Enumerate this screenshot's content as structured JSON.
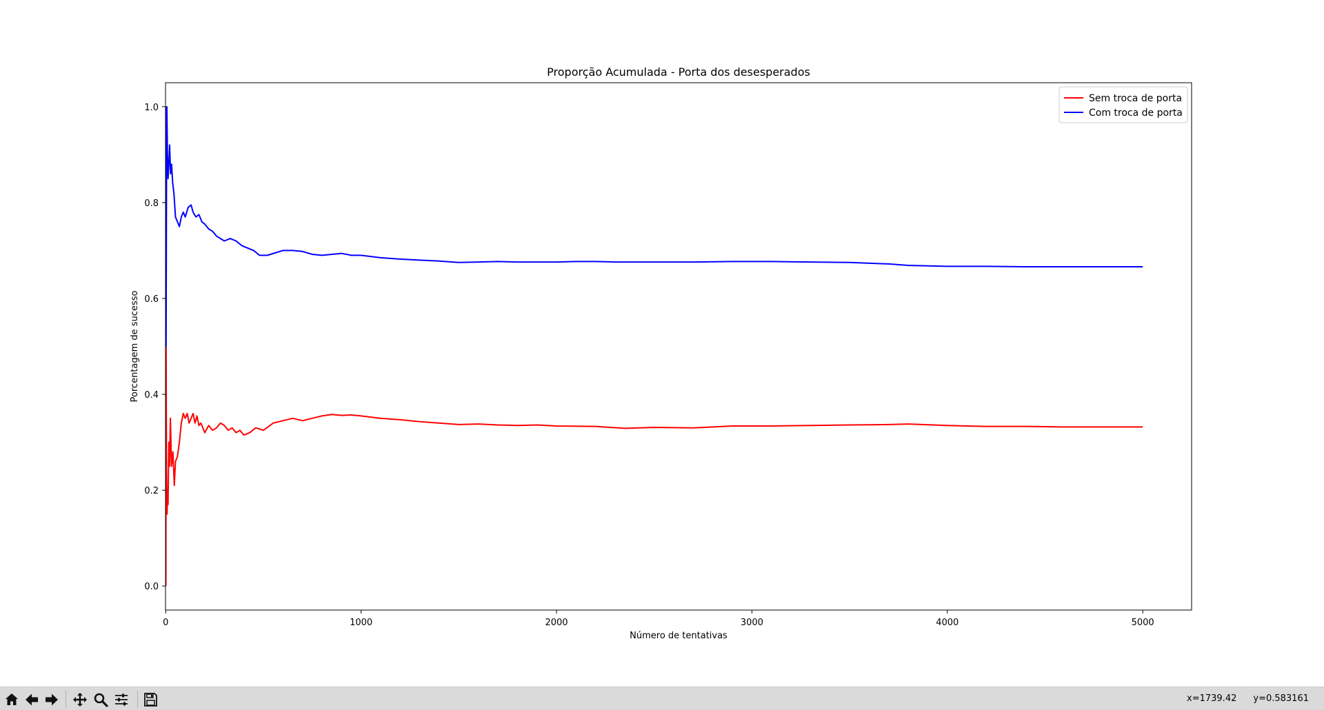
{
  "chart_data": {
    "type": "line",
    "title": "Proporção Acumulada - Porta dos desesperados",
    "xlabel": "Número de tentativas",
    "ylabel": "Porcentagem de sucesso",
    "xlim": [
      -1,
      5250
    ],
    "ylim": [
      -0.05,
      1.05
    ],
    "xticks": [
      0,
      1000,
      2000,
      3000,
      4000,
      5000
    ],
    "yticks": [
      0.0,
      0.2,
      0.4,
      0.6,
      0.8,
      1.0
    ],
    "xtick_labels": [
      "0",
      "1000",
      "2000",
      "3000",
      "4000",
      "5000"
    ],
    "ytick_labels": [
      "0.0",
      "0.2",
      "0.4",
      "0.6",
      "0.8",
      "1.0"
    ],
    "legend_position": "top-right",
    "grid": false,
    "series": [
      {
        "name": "Sem troca de porta",
        "color": "#ff0000",
        "points": [
          [
            1,
            0.0
          ],
          [
            2,
            0.5
          ],
          [
            4,
            0.25
          ],
          [
            7,
            0.15
          ],
          [
            10,
            0.2
          ],
          [
            12,
            0.17
          ],
          [
            16,
            0.3
          ],
          [
            20,
            0.25
          ],
          [
            24,
            0.35
          ],
          [
            30,
            0.25
          ],
          [
            37,
            0.28
          ],
          [
            44,
            0.21
          ],
          [
            50,
            0.26
          ],
          [
            60,
            0.27
          ],
          [
            70,
            0.3
          ],
          [
            80,
            0.34
          ],
          [
            90,
            0.36
          ],
          [
            100,
            0.35
          ],
          [
            110,
            0.36
          ],
          [
            120,
            0.34
          ],
          [
            130,
            0.35
          ],
          [
            140,
            0.36
          ],
          [
            150,
            0.34
          ],
          [
            160,
            0.355
          ],
          [
            170,
            0.335
          ],
          [
            180,
            0.34
          ],
          [
            190,
            0.33
          ],
          [
            200,
            0.32
          ],
          [
            220,
            0.335
          ],
          [
            240,
            0.325
          ],
          [
            260,
            0.33
          ],
          [
            280,
            0.34
          ],
          [
            300,
            0.335
          ],
          [
            320,
            0.325
          ],
          [
            340,
            0.33
          ],
          [
            360,
            0.32
          ],
          [
            380,
            0.325
          ],
          [
            400,
            0.315
          ],
          [
            430,
            0.32
          ],
          [
            460,
            0.33
          ],
          [
            500,
            0.325
          ],
          [
            550,
            0.34
          ],
          [
            600,
            0.345
          ],
          [
            650,
            0.35
          ],
          [
            700,
            0.345
          ],
          [
            750,
            0.35
          ],
          [
            800,
            0.355
          ],
          [
            850,
            0.358
          ],
          [
            900,
            0.356
          ],
          [
            950,
            0.357
          ],
          [
            1000,
            0.355
          ],
          [
            1100,
            0.35
          ],
          [
            1200,
            0.347
          ],
          [
            1300,
            0.343
          ],
          [
            1400,
            0.34
          ],
          [
            1500,
            0.337
          ],
          [
            1600,
            0.338
          ],
          [
            1700,
            0.336
          ],
          [
            1800,
            0.335
          ],
          [
            1900,
            0.336
          ],
          [
            2000,
            0.334
          ],
          [
            2200,
            0.333
          ],
          [
            2350,
            0.329
          ],
          [
            2500,
            0.331
          ],
          [
            2700,
            0.33
          ],
          [
            2900,
            0.334
          ],
          [
            3100,
            0.334
          ],
          [
            3300,
            0.335
          ],
          [
            3500,
            0.336
          ],
          [
            3700,
            0.337
          ],
          [
            3800,
            0.338
          ],
          [
            4000,
            0.335
          ],
          [
            4200,
            0.333
          ],
          [
            4400,
            0.333
          ],
          [
            4600,
            0.332
          ],
          [
            4800,
            0.332
          ],
          [
            5000,
            0.332
          ]
        ]
      },
      {
        "name": "Com troca de porta",
        "color": "#0000ff",
        "points": [
          [
            1,
            1.0
          ],
          [
            2,
            0.5
          ],
          [
            4,
            0.83
          ],
          [
            6,
            1.0
          ],
          [
            9,
            0.9
          ],
          [
            12,
            0.85
          ],
          [
            16,
            0.88
          ],
          [
            20,
            0.92
          ],
          [
            25,
            0.86
          ],
          [
            30,
            0.88
          ],
          [
            36,
            0.84
          ],
          [
            42,
            0.82
          ],
          [
            50,
            0.77
          ],
          [
            60,
            0.76
          ],
          [
            70,
            0.75
          ],
          [
            80,
            0.77
          ],
          [
            90,
            0.78
          ],
          [
            100,
            0.77
          ],
          [
            115,
            0.79
          ],
          [
            130,
            0.795
          ],
          [
            140,
            0.78
          ],
          [
            155,
            0.77
          ],
          [
            170,
            0.775
          ],
          [
            185,
            0.76
          ],
          [
            200,
            0.755
          ],
          [
            220,
            0.745
          ],
          [
            240,
            0.74
          ],
          [
            260,
            0.73
          ],
          [
            280,
            0.725
          ],
          [
            300,
            0.72
          ],
          [
            330,
            0.725
          ],
          [
            360,
            0.72
          ],
          [
            390,
            0.71
          ],
          [
            420,
            0.705
          ],
          [
            450,
            0.7
          ],
          [
            480,
            0.69
          ],
          [
            520,
            0.69
          ],
          [
            560,
            0.695
          ],
          [
            600,
            0.7
          ],
          [
            650,
            0.7
          ],
          [
            700,
            0.698
          ],
          [
            750,
            0.692
          ],
          [
            800,
            0.69
          ],
          [
            850,
            0.692
          ],
          [
            900,
            0.694
          ],
          [
            950,
            0.69
          ],
          [
            1000,
            0.69
          ],
          [
            1100,
            0.685
          ],
          [
            1200,
            0.682
          ],
          [
            1300,
            0.68
          ],
          [
            1400,
            0.678
          ],
          [
            1500,
            0.675
          ],
          [
            1600,
            0.676
          ],
          [
            1700,
            0.677
          ],
          [
            1800,
            0.676
          ],
          [
            1900,
            0.676
          ],
          [
            2000,
            0.676
          ],
          [
            2100,
            0.677
          ],
          [
            2200,
            0.677
          ],
          [
            2300,
            0.676
          ],
          [
            2400,
            0.676
          ],
          [
            2500,
            0.676
          ],
          [
            2700,
            0.676
          ],
          [
            2900,
            0.677
          ],
          [
            3100,
            0.677
          ],
          [
            3300,
            0.676
          ],
          [
            3500,
            0.675
          ],
          [
            3700,
            0.672
          ],
          [
            3800,
            0.669
          ],
          [
            4000,
            0.667
          ],
          [
            4200,
            0.667
          ],
          [
            4400,
            0.666
          ],
          [
            4600,
            0.666
          ],
          [
            4800,
            0.666
          ],
          [
            5000,
            0.666
          ]
        ]
      }
    ]
  },
  "toolbar": {
    "buttons": [
      {
        "name": "home-button",
        "icon": "home-icon"
      },
      {
        "name": "back-button",
        "icon": "arrow-left-icon"
      },
      {
        "name": "forward-button",
        "icon": "arrow-right-icon"
      },
      {
        "name": "pan-button",
        "icon": "move-icon"
      },
      {
        "name": "zoom-button",
        "icon": "magnifier-icon"
      },
      {
        "name": "configure-subplots-button",
        "icon": "sliders-icon"
      },
      {
        "name": "save-button",
        "icon": "floppy-disk-icon"
      }
    ],
    "coord_x": "x=1739.42",
    "coord_y": "y=0.583161"
  }
}
